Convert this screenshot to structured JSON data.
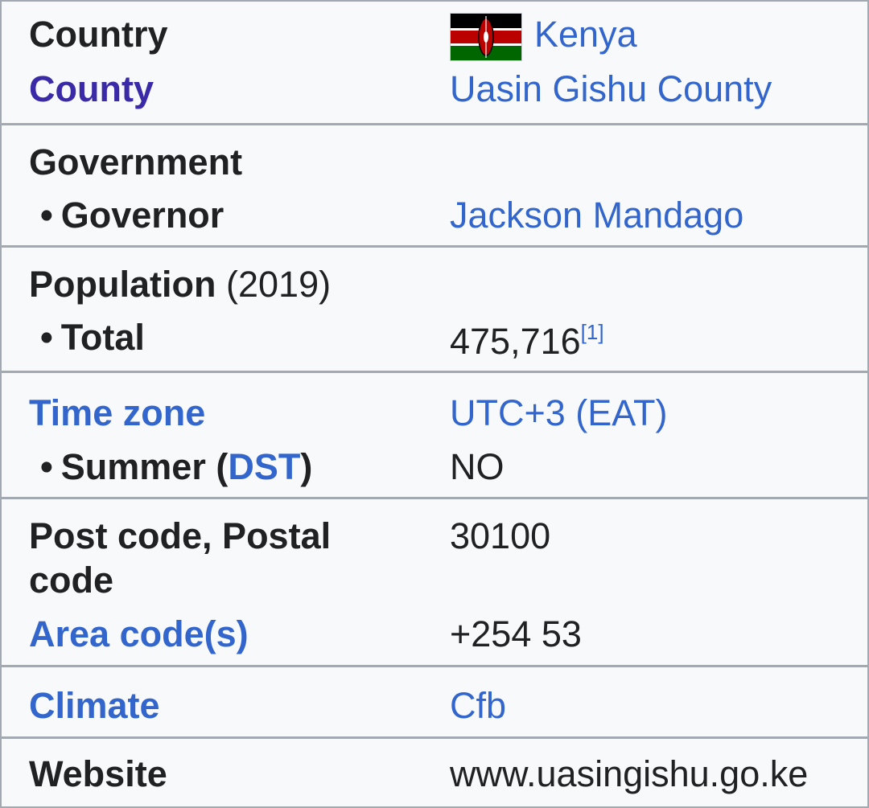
{
  "rows": {
    "country": {
      "label": "Country",
      "value": "Kenya",
      "flag_icon": "kenya-flag-icon"
    },
    "county": {
      "label": "County",
      "value": "Uasin Gishu County"
    },
    "government": {
      "label": "Government"
    },
    "governor": {
      "label": "Governor",
      "value": "Jackson Mandago"
    },
    "population": {
      "label": "Population",
      "year": "(2019)"
    },
    "total": {
      "label": "Total",
      "value": "475,716",
      "ref": "[1]"
    },
    "timezone": {
      "label": "Time zone",
      "value": "UTC+3 (EAT)"
    },
    "summer": {
      "label_prefix": "Summer (",
      "label_link": "DST",
      "label_suffix": ")",
      "value": "NO"
    },
    "postcode": {
      "label_line1": "Post code, Postal",
      "label_line2": "code",
      "value": "30100"
    },
    "areacode": {
      "label": "Area code(s)",
      "value": "+254 53"
    },
    "climate": {
      "label": "Climate",
      "value": "Cfb"
    },
    "website": {
      "label": "Website",
      "value": "www.uasingishu.go.ke"
    }
  },
  "bullet": "•",
  "colors": {
    "link": "#3366cc",
    "border": "#a2a9b1",
    "background": "#f8f9fa",
    "text": "#202122"
  }
}
